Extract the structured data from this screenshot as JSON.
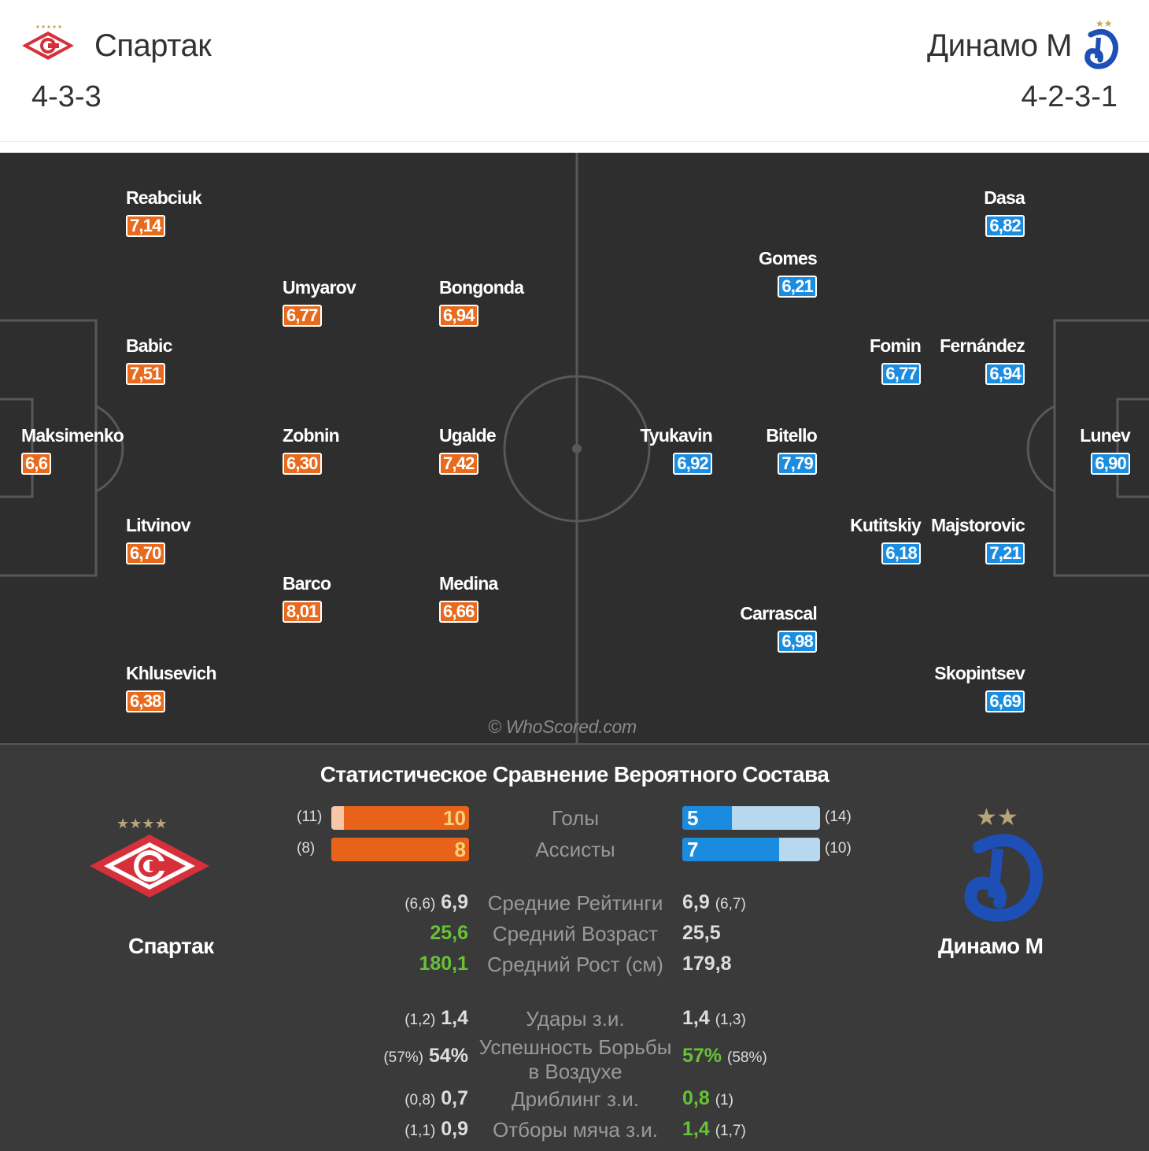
{
  "header": {
    "home_team": "Спартак",
    "home_formation": "4-3-3",
    "away_team": "Динамо М",
    "away_formation": "4-2-3-1"
  },
  "colors": {
    "home": "#e86a1c",
    "away": "#1b8de0",
    "pitch": "#2e2e2e",
    "good": "#66c236"
  },
  "pitch": {
    "watermark": "© WhoScored.com",
    "home_players": [
      {
        "name": "Reabciuk",
        "rating": "7,14"
      },
      {
        "name": "Umyarov",
        "rating": "6,77"
      },
      {
        "name": "Bongonda",
        "rating": "6,94"
      },
      {
        "name": "Babic",
        "rating": "7,51"
      },
      {
        "name": "Maksimenko",
        "rating": "6,6"
      },
      {
        "name": "Zobnin",
        "rating": "6,30"
      },
      {
        "name": "Ugalde",
        "rating": "7,42"
      },
      {
        "name": "Litvinov",
        "rating": "6,70"
      },
      {
        "name": "Barco",
        "rating": "8,01"
      },
      {
        "name": "Medina",
        "rating": "6,66"
      },
      {
        "name": "Khlusevich",
        "rating": "6,38"
      }
    ],
    "away_players": [
      {
        "name": "Dasa",
        "rating": "6,82"
      },
      {
        "name": "Gomes",
        "rating": "6,21"
      },
      {
        "name": "Fomin",
        "rating": "6,77"
      },
      {
        "name": "Fernández",
        "rating": "6,94"
      },
      {
        "name": "Tyukavin",
        "rating": "6,92"
      },
      {
        "name": "Bitello",
        "rating": "7,79"
      },
      {
        "name": "Lunev",
        "rating": "6,90"
      },
      {
        "name": "Kutitskiy",
        "rating": "6,18"
      },
      {
        "name": "Majstorovic",
        "rating": "7,21"
      },
      {
        "name": "Carrascal",
        "rating": "6,98"
      },
      {
        "name": "Skopintsev",
        "rating": "6,69"
      }
    ]
  },
  "stats": {
    "title": "Статистическое Сравнение Вероятного Состава",
    "home_team": "Спартак",
    "away_team": "Динамо М",
    "bars": [
      {
        "label": "Голы",
        "home_prev": "(11)",
        "home": "10",
        "home_fraction": 0.91,
        "away": "5",
        "away_fraction": 0.36,
        "away_prev": "(14)"
      },
      {
        "label": "Ассисты",
        "home_prev": "(8)",
        "home": "8",
        "home_fraction": 1.0,
        "away": "7",
        "away_fraction": 0.7,
        "away_prev": "(10)"
      }
    ],
    "rows": [
      {
        "label": "Средние Рейтинги",
        "home_prev": "(6,6)",
        "home": "6,9",
        "away": "6,9",
        "away_prev": "(6,7)",
        "home_good": false,
        "away_good": false
      },
      {
        "label": "Средний Возраст",
        "home_prev": "",
        "home": "25,6",
        "away": "25,5",
        "away_prev": "",
        "home_good": true,
        "away_good": false
      },
      {
        "label": "Средний Рост (см)",
        "home_prev": "",
        "home": "180,1",
        "away": "179,8",
        "away_prev": "",
        "home_good": true,
        "away_good": false
      },
      {
        "label": "Удары з.и.",
        "home_prev": "(1,2)",
        "home": "1,4",
        "away": "1,4",
        "away_prev": "(1,3)",
        "home_good": false,
        "away_good": false
      },
      {
        "label_line1": "Успешность Борьбы",
        "label_line2": "в Воздухе",
        "home_prev": "(57%)",
        "home": "54%",
        "away": "57%",
        "away_prev": "(58%)",
        "home_good": false,
        "away_good": true
      },
      {
        "label": "Дриблинг з.и.",
        "home_prev": "(0,8)",
        "home": "0,7",
        "away": "0,8",
        "away_prev": "(1)",
        "home_good": false,
        "away_good": true
      },
      {
        "label": "Отборы мяча з.и.",
        "home_prev": "(1,1)",
        "home": "0,9",
        "away": "1,4",
        "away_prev": "(1,7)",
        "home_good": false,
        "away_good": true
      }
    ]
  }
}
